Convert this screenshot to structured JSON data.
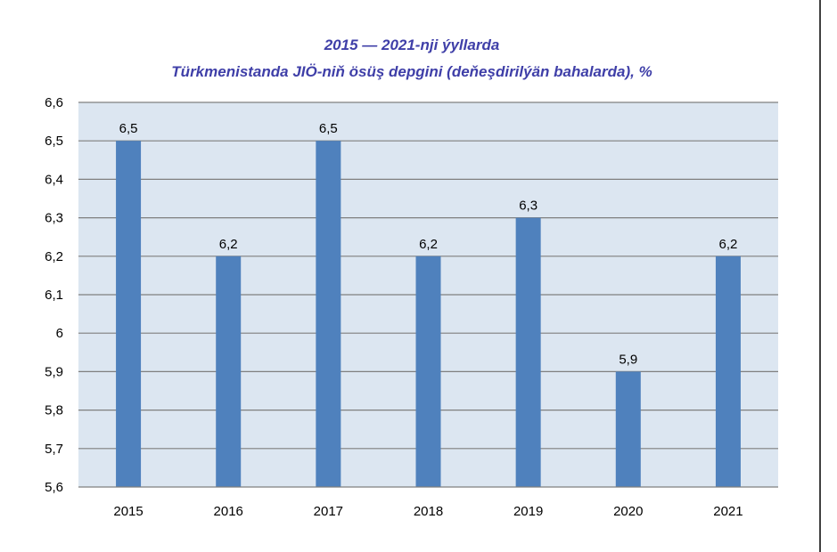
{
  "colors": {
    "title": "#3f3fa8",
    "plot_background": "#dce6f1",
    "bar": "#4f81bd",
    "gridline": "#7f7f7f",
    "right_border": "#404040"
  },
  "chart_data": {
    "type": "bar",
    "title": "2015 — 2021-nji ýyllarda",
    "subtitle": "Türkmenistanda JIÖ-niň ösüş depgini (deňeşdirilýän bahalarda), %",
    "xlabel": "",
    "ylabel": "",
    "categories": [
      "2015",
      "2016",
      "2017",
      "2018",
      "2019",
      "2020",
      "2021"
    ],
    "values": [
      6.5,
      6.2,
      6.5,
      6.2,
      6.3,
      5.9,
      6.2
    ],
    "data_labels": [
      "6,5",
      "6,2",
      "6,5",
      "6,2",
      "6,3",
      "5,9",
      "6,2"
    ],
    "ylim": [
      5.6,
      6.6
    ],
    "yticks": [
      5.6,
      5.7,
      5.8,
      5.9,
      6.0,
      6.1,
      6.2,
      6.3,
      6.4,
      6.5,
      6.6
    ],
    "ytick_labels": [
      "5,6",
      "5,7",
      "5,8",
      "5,9",
      "6",
      "6,1",
      "6,2",
      "6,3",
      "6,4",
      "6,5",
      "6,6"
    ],
    "grid": true,
    "legend": "none"
  }
}
